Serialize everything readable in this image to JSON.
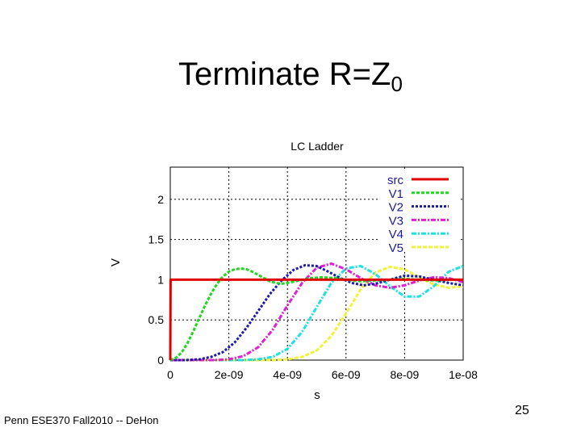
{
  "slide": {
    "title_main": "Terminate R=Z",
    "title_sub": "0",
    "footer": "Penn ESE370 Fall2010 -- DeHon",
    "page_number": "25"
  },
  "chart_data": {
    "type": "line",
    "title": "LC Ladder",
    "xlabel": "s",
    "ylabel": "V",
    "xlim": [
      0,
      1e-08
    ],
    "ylim": [
      0,
      2.4
    ],
    "x_ticks": [
      0,
      2e-09,
      4e-09,
      6e-09,
      8e-09,
      1e-08
    ],
    "x_tick_labels": [
      "0",
      "2e-09",
      "4e-09",
      "6e-09",
      "8e-09",
      "1e-08"
    ],
    "y_ticks": [
      0,
      0.5,
      1,
      1.5,
      2
    ],
    "y_tick_labels": [
      "0",
      "0.5",
      "1",
      "1.5",
      "2"
    ],
    "grid": true,
    "legend_position": "top-right",
    "series": [
      {
        "name": "src",
        "color": "#e00000",
        "dash": "",
        "x": [
          0,
          1e-11,
          1e-08
        ],
        "y": [
          0,
          1,
          1
        ]
      },
      {
        "name": "V1",
        "color": "#22d622",
        "dash": "4 2",
        "x": [
          0,
          2e-10,
          4e-10,
          6e-10,
          8e-10,
          1e-09,
          1.2e-09,
          1.4e-09,
          1.6e-09,
          1.8e-09,
          2e-09,
          2.2e-09,
          2.4e-09,
          2.6e-09,
          2.8e-09,
          3e-09,
          3.2e-09,
          3.4e-09,
          3.6e-09,
          3.8e-09,
          4e-09,
          4.4e-09,
          4.8e-09,
          5.2e-09,
          5.6e-09,
          6e-09,
          6.5e-09,
          7e-09,
          7.5e-09,
          8e-09,
          8.5e-09,
          9e-09,
          9.5e-09,
          1e-08
        ],
        "y": [
          0,
          0.03,
          0.1,
          0.22,
          0.37,
          0.53,
          0.69,
          0.83,
          0.95,
          1.04,
          1.1,
          1.13,
          1.14,
          1.13,
          1.1,
          1.06,
          1.02,
          0.98,
          0.96,
          0.95,
          0.96,
          0.99,
          1.02,
          1.03,
          1.02,
          1.0,
          0.98,
          0.99,
          1.0,
          1.01,
          1.0,
          0.99,
          1.0,
          1.0
        ]
      },
      {
        "name": "V2",
        "color": "#1a1aa8",
        "dash": "3 2",
        "x": [
          0,
          5e-10,
          1e-09,
          1.4e-09,
          1.8e-09,
          2.2e-09,
          2.6e-09,
          3e-09,
          3.4e-09,
          3.8e-09,
          4.2e-09,
          4.6e-09,
          5e-09,
          5.4e-09,
          5.8e-09,
          6.2e-09,
          6.6e-09,
          7e-09,
          7.5e-09,
          8e-09,
          8.5e-09,
          9e-09,
          9.5e-09,
          1e-08
        ],
        "y": [
          0,
          0.0,
          0.01,
          0.04,
          0.1,
          0.22,
          0.4,
          0.61,
          0.82,
          0.99,
          1.12,
          1.18,
          1.17,
          1.1,
          1.02,
          0.96,
          0.93,
          0.95,
          1.0,
          1.05,
          1.04,
          1.0,
          0.96,
          0.93
        ]
      },
      {
        "name": "V3",
        "color": "#e020d0",
        "dash": "6 2 2 2",
        "x": [
          0,
          1.5e-09,
          2e-09,
          2.5e-09,
          3e-09,
          3.5e-09,
          4e-09,
          4.5e-09,
          5e-09,
          5.5e-09,
          6e-09,
          6.5e-09,
          7e-09,
          7.5e-09,
          8e-09,
          8.5e-09,
          9e-09,
          9.5e-09,
          1e-08
        ],
        "y": [
          0,
          0.0,
          0.01,
          0.05,
          0.16,
          0.38,
          0.68,
          0.96,
          1.15,
          1.2,
          1.13,
          1.02,
          0.93,
          0.9,
          0.93,
          0.99,
          1.03,
          1.02,
          0.97
        ]
      },
      {
        "name": "V4",
        "color": "#20e0e0",
        "dash": "6 2 2 2",
        "x": [
          0,
          2.5e-09,
          3e-09,
          3.5e-09,
          4e-09,
          4.5e-09,
          5e-09,
          5.5e-09,
          6e-09,
          6.5e-09,
          7e-09,
          7.5e-09,
          8e-09,
          8.5e-09,
          9e-09,
          9.5e-09,
          1e-08
        ],
        "y": [
          0,
          0.0,
          0.01,
          0.04,
          0.14,
          0.35,
          0.66,
          0.96,
          1.14,
          1.17,
          1.07,
          0.92,
          0.79,
          0.79,
          0.92,
          1.1,
          1.17
        ]
      },
      {
        "name": "V5",
        "color": "#f2f23a",
        "dash": "5 2",
        "x": [
          0,
          3.5e-09,
          4e-09,
          4.5e-09,
          5e-09,
          5.5e-09,
          6e-09,
          6.5e-09,
          7e-09,
          7.5e-09,
          8e-09,
          8.5e-09,
          9e-09,
          9.5e-09,
          1e-08
        ],
        "y": [
          0,
          0.0,
          0.01,
          0.04,
          0.12,
          0.3,
          0.58,
          0.88,
          1.09,
          1.16,
          1.13,
          1.03,
          0.94,
          0.9,
          0.92
        ]
      }
    ]
  }
}
